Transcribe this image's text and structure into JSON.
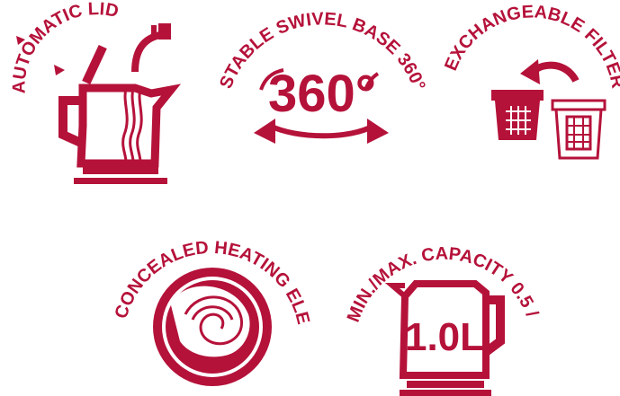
{
  "colors": {
    "accent": "#b5123a",
    "background": "#ffffff"
  },
  "features": [
    {
      "id": "automatic-lid",
      "label": "AUTOMATIC LID",
      "icon": "kettle-lid-icon"
    },
    {
      "id": "swivel-base",
      "label": "STABLE SWIVEL BASE 360°",
      "icon": "rotate-360-icon",
      "big_text": "360°"
    },
    {
      "id": "filter",
      "label": "EXCHANGEABLE FILTER",
      "icon": "filter-exchange-icon"
    },
    {
      "id": "heating-element",
      "label": "CONCEALED HEATING ELEMENT",
      "icon": "heating-element-icon"
    },
    {
      "id": "capacity",
      "label": "MIN./MAX. CAPACITY 0.5 / 1.0L",
      "icon": "kettle-capacity-icon",
      "big_text": "1.0L"
    }
  ]
}
